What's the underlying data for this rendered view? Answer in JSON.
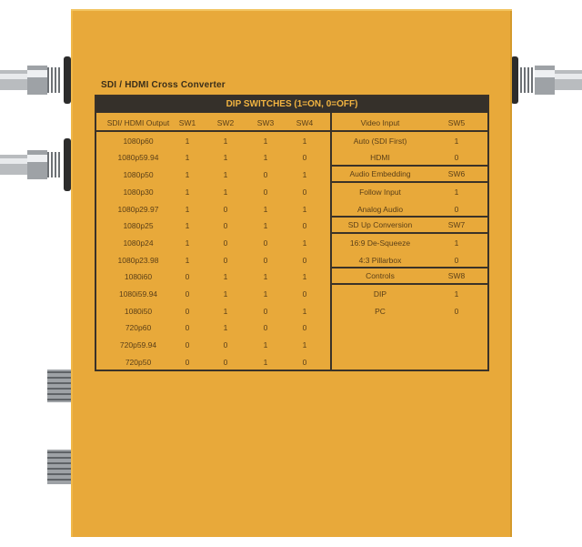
{
  "device_title": "SDI / HDMI Cross Converter",
  "table_title": "DIP SWITCHES (1=ON, 0=OFF)",
  "output_table": {
    "headers": [
      "SDI/ HDMI Output",
      "SW1",
      "SW2",
      "SW3",
      "SW4"
    ],
    "rows": [
      [
        "1080p60",
        "1",
        "1",
        "1",
        "1"
      ],
      [
        "1080p59.94",
        "1",
        "1",
        "1",
        "0"
      ],
      [
        "1080p50",
        "1",
        "1",
        "0",
        "1"
      ],
      [
        "1080p30",
        "1",
        "1",
        "0",
        "0"
      ],
      [
        "1080p29.97",
        "1",
        "0",
        "1",
        "1"
      ],
      [
        "1080p25",
        "1",
        "0",
        "1",
        "0"
      ],
      [
        "1080p24",
        "1",
        "0",
        "0",
        "1"
      ],
      [
        "1080p23.98",
        "1",
        "0",
        "0",
        "0"
      ],
      [
        "1080i60",
        "0",
        "1",
        "1",
        "1"
      ],
      [
        "1080i59.94",
        "0",
        "1",
        "1",
        "0"
      ],
      [
        "1080i50",
        "0",
        "1",
        "0",
        "1"
      ],
      [
        "720p60",
        "0",
        "1",
        "0",
        "0"
      ],
      [
        "720p59.94",
        "0",
        "0",
        "1",
        "1"
      ],
      [
        "720p50",
        "0",
        "0",
        "1",
        "0"
      ]
    ]
  },
  "settings_groups": [
    {
      "label": "Video Input",
      "switch": "SW5",
      "options": [
        [
          "Auto (SDI First)",
          "1"
        ],
        [
          "HDMI",
          "0"
        ]
      ]
    },
    {
      "label": "Audio Embedding",
      "switch": "SW6",
      "options": [
        [
          "Follow Input",
          "1"
        ],
        [
          "Analog Audio",
          "0"
        ]
      ]
    },
    {
      "label": "SD Up Conversion",
      "switch": "SW7",
      "options": [
        [
          "16:9 De-Squeeze",
          "1"
        ],
        [
          "4:3 Pillarbox",
          "0"
        ]
      ]
    },
    {
      "label": "Controls",
      "switch": "SW8",
      "options": [
        [
          "DIP",
          "1"
        ],
        [
          "PC",
          "0"
        ]
      ]
    }
  ],
  "colors": {
    "body": "#e8a93a",
    "table_header": "#35302a",
    "table_header_text": "#f2b441",
    "text": "#5a3f18"
  }
}
